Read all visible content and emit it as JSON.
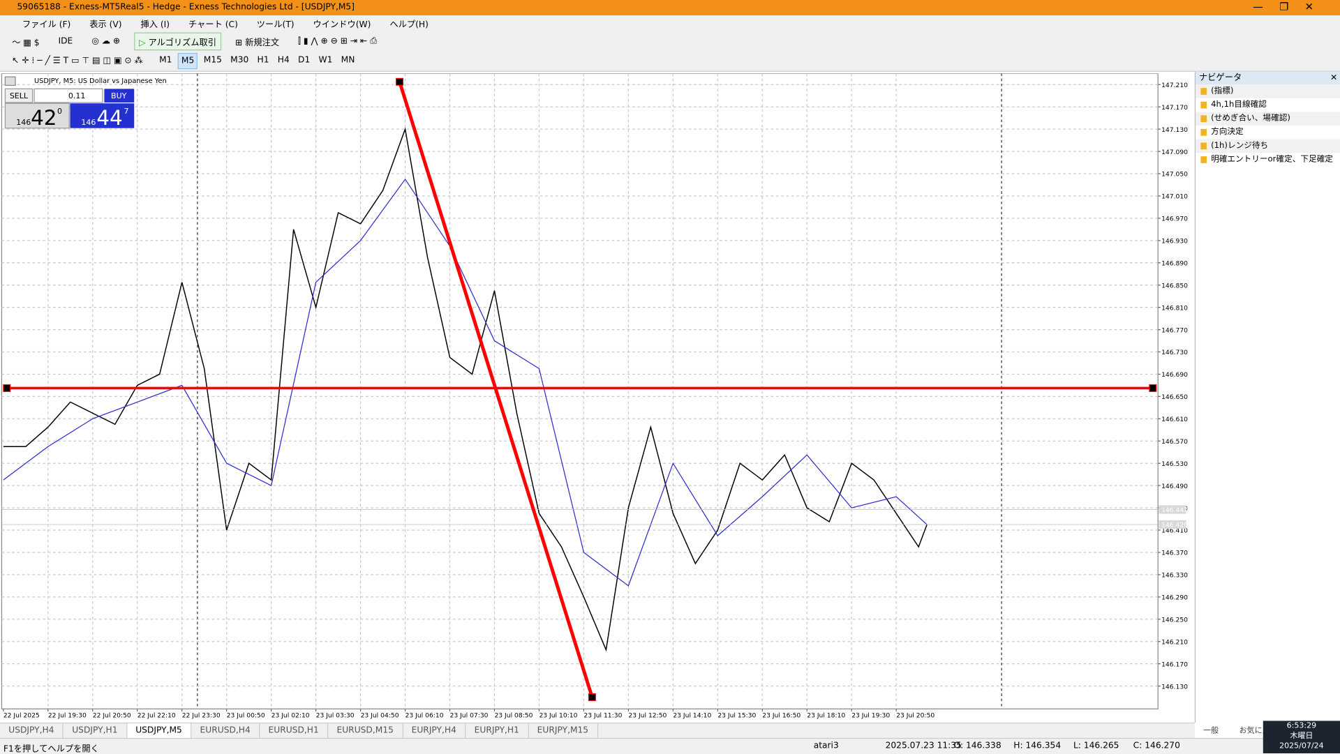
{
  "window": {
    "title": "59065188 - Exness-MT5Real5 - Hedge - Exness Technologies Ltd - [USDJPY,M5]"
  },
  "menu": [
    "ファイル (F)",
    "表示 (V)",
    "挿入 (I)",
    "チャート (C)",
    "ツール(T)",
    "ウインドウ(W)",
    "ヘルプ(H)"
  ],
  "toolbar": {
    "ide": "IDE",
    "algo": "アルゴリズム取引",
    "new_order": "新規注文",
    "timeframes": [
      "M1",
      "M5",
      "M15",
      "M30",
      "H1",
      "H4",
      "D1",
      "W1",
      "MN"
    ]
  },
  "chart_header": "USDJPY, M5:  US Dollar vs Japanese Yen",
  "trade_panel": {
    "sell": "SELL",
    "buy": "BUY",
    "lot": "0.11",
    "bid_big": "146",
    "bid": "42",
    "bid_sup": "0",
    "ask_big": "146",
    "ask": "44",
    "ask_sup": "7"
  },
  "chart_data": {
    "type": "line",
    "xlim": [
      -0.6,
      413.8
    ],
    "ylim": [
      146.089,
      147.23
    ],
    "xticks": [
      {
        "value": 0,
        "label": "22 Jul 2025"
      },
      {
        "value": 16,
        "label": "22 Jul 19:30"
      },
      {
        "value": 32,
        "label": "22 Jul 20:50"
      },
      {
        "value": 48,
        "label": "22 Jul 22:10"
      },
      {
        "value": 64,
        "label": "22 Jul 23:30"
      },
      {
        "value": 80,
        "label": "23 Jul 00:50"
      },
      {
        "value": 96,
        "label": "23 Jul 02:10"
      },
      {
        "value": 112,
        "label": "23 Jul 03:30"
      },
      {
        "value": 128,
        "label": "23 Jul 04:50"
      },
      {
        "value": 144,
        "label": "23 Jul 06:10"
      },
      {
        "value": 160,
        "label": "23 Jul 07:30"
      },
      {
        "value": 176,
        "label": "23 Jul 08:50"
      },
      {
        "value": 192,
        "label": "23 Jul 10:10"
      },
      {
        "value": 208,
        "label": "23 Jul 11:30"
      },
      {
        "value": 224,
        "label": "23 Jul 12:50"
      },
      {
        "value": 240,
        "label": "23 Jul 14:10"
      },
      {
        "value": 256,
        "label": "23 Jul 15:30"
      },
      {
        "value": 272,
        "label": "23 Jul 16:50"
      },
      {
        "value": 288,
        "label": "23 Jul 18:10"
      },
      {
        "value": 304,
        "label": "23 Jul 19:30"
      },
      {
        "value": 320,
        "label": "23 Jul 20:50"
      }
    ],
    "yticks": [
      {
        "value": 147.21,
        "label": "147.210"
      },
      {
        "value": 147.17,
        "label": "147.170"
      },
      {
        "value": 147.13,
        "label": "147.130"
      },
      {
        "value": 147.09,
        "label": "147.090"
      },
      {
        "value": 147.05,
        "label": "147.050"
      },
      {
        "value": 147.01,
        "label": "147.010"
      },
      {
        "value": 146.97,
        "label": "146.970"
      },
      {
        "value": 146.93,
        "label": "146.930"
      },
      {
        "value": 146.89,
        "label": "146.890"
      },
      {
        "value": 146.85,
        "label": "146.850"
      },
      {
        "value": 146.81,
        "label": "146.810"
      },
      {
        "value": 146.77,
        "label": "146.770"
      },
      {
        "value": 146.73,
        "label": "146.730"
      },
      {
        "value": 146.69,
        "label": "146.690"
      },
      {
        "value": 146.65,
        "label": "146.650"
      },
      {
        "value": 146.61,
        "label": "146.610"
      },
      {
        "value": 146.57,
        "label": "146.570"
      },
      {
        "value": 146.53,
        "label": "146.530"
      },
      {
        "value": 146.49,
        "label": "146.490"
      },
      {
        "value": 146.45,
        "label": "146.450"
      },
      {
        "value": 146.41,
        "label": "146.410"
      },
      {
        "value": 146.37,
        "label": "146.370"
      },
      {
        "value": 146.33,
        "label": "146.330"
      },
      {
        "value": 146.29,
        "label": "146.290"
      },
      {
        "value": 146.25,
        "label": "146.250"
      },
      {
        "value": 146.21,
        "label": "146.210"
      },
      {
        "value": 146.17,
        "label": "146.170"
      },
      {
        "value": 146.13,
        "label": "146.130"
      }
    ],
    "grid": true,
    "series": [
      {
        "color": "#000000",
        "x": [
          0,
          8,
          16,
          24,
          32,
          40,
          48,
          56,
          64,
          72,
          80,
          88,
          96,
          104,
          112,
          120,
          128,
          136,
          144,
          152,
          160,
          168,
          176,
          184,
          192,
          200,
          208,
          216,
          224,
          232,
          240,
          248,
          256,
          264,
          272,
          280,
          288,
          296,
          304,
          312,
          320,
          328,
          331
        ],
        "values": [
          146.56,
          146.56,
          146.595,
          146.64,
          146.62,
          146.6,
          146.67,
          146.69,
          146.855,
          146.7,
          146.41,
          146.53,
          146.5,
          146.95,
          146.81,
          146.98,
          146.96,
          147.02,
          147.13,
          146.9,
          146.72,
          146.69,
          146.84,
          146.62,
          146.44,
          146.38,
          146.29,
          146.195,
          146.45,
          146.595,
          146.44,
          146.35,
          146.41,
          146.53,
          146.5,
          146.545,
          146.45,
          146.425,
          146.53,
          146.5,
          146.44,
          146.38,
          146.42
        ]
      },
      {
        "color": "#2a2ad0",
        "x": [
          0,
          16,
          32,
          48,
          64,
          80,
          96,
          112,
          128,
          144,
          160,
          176,
          192,
          208,
          224,
          240,
          256,
          272,
          288,
          304,
          320,
          331
        ],
        "values": [
          146.5,
          146.56,
          146.61,
          146.64,
          146.67,
          146.53,
          146.49,
          146.855,
          146.93,
          147.04,
          146.92,
          146.75,
          146.7,
          146.37,
          146.31,
          146.53,
          146.4,
          146.47,
          146.545,
          146.45,
          146.47,
          146.42
        ]
      }
    ],
    "hline": {
      "value": 146.665,
      "color": "#ff0000"
    },
    "trendline": {
      "x": [
        142,
        211
      ],
      "values": [
        147.215,
        146.11
      ],
      "color": "#ff0000"
    },
    "price_labels": [
      146.447,
      {
        "value": 146.42,
        "label": "146.420"
      }
    ]
  },
  "navigator": {
    "title": "ナビゲータ",
    "items": [
      "(指標)",
      "4h,1h目線確認",
      "(せめぎ合い、場確認)",
      "方向決定",
      "(1h)レンジ待ち",
      "明確エントリーor確定、下足確定"
    ]
  },
  "tabs": [
    "USDJPY,H4",
    "USDJPY,H1",
    "USDJPY,M5",
    "EURUSD,H4",
    "EURUSD,H1",
    "EURUSD,M15",
    "EURJPY,H4",
    "EURJPY,H1",
    "EURJPY,M15"
  ],
  "panel_tabs": [
    "一般",
    "お気に入"
  ],
  "status": {
    "help": "F1を押してヘルプを開く",
    "profile": "atari3",
    "time": "2025.07.23 11:35",
    "open": "O: 146.338",
    "high": "H: 146.354",
    "low": "L: 146.265",
    "close": "C: 146.270"
  },
  "clock": {
    "time": "6:53:29",
    "day": "木曜日",
    "date": "2025/07/24"
  }
}
